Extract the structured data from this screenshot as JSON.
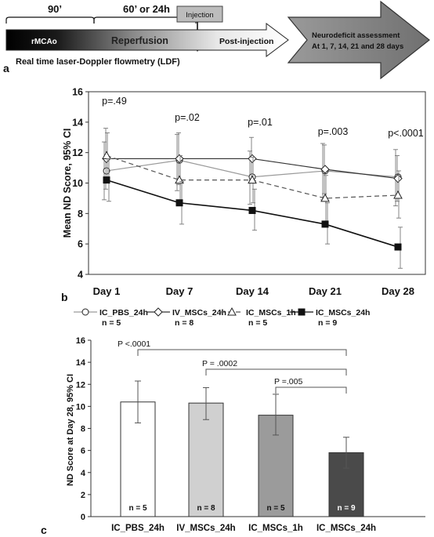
{
  "panel_a": {
    "label": "a",
    "t90": "90’",
    "t60": "60’ or 24h",
    "injection": "Injection",
    "rmcao": "rMCAo",
    "reperfusion": "Reperfusion",
    "post": "Post-injection",
    "ldf": "Real time laser-Doppler flowmetry (LDF)",
    "assess1": "Neurodeficit assessment",
    "assess2": "At 1, 7, 14, 21 and 28 days"
  },
  "chart_data": [
    {
      "panel": "b",
      "type": "line",
      "ylabel": "Mean ND Score, 95% CI",
      "ylim": [
        4,
        16
      ],
      "yticks": [
        "4",
        "6",
        "8",
        "10",
        "12",
        "14",
        "16"
      ],
      "categories": [
        "Day 1",
        "Day 7",
        "Day 14",
        "Day 21",
        "Day 28"
      ],
      "pvalues": [
        "p=.49",
        "p=.02",
        "p=.01",
        "p=.003",
        "p<.0001"
      ],
      "series": [
        {
          "name": "IC_PBS_24h",
          "n": "n = 5",
          "marker": "circle",
          "color": "#222222",
          "line": "#9a9a9a",
          "dash": "",
          "values": [
            10.8,
            11.5,
            10.4,
            10.8,
            10.4
          ],
          "lo": [
            8.9,
            9.5,
            8.6,
            8.9,
            8.5
          ],
          "hi": [
            12.7,
            13.2,
            12.1,
            12.6,
            12.2
          ]
        },
        {
          "name": "IV_MSCs_24h",
          "n": "n = 8",
          "marker": "diamond",
          "color": "#222222",
          "line": "#333333",
          "dash": "",
          "values": [
            11.6,
            11.6,
            11.6,
            10.9,
            10.3
          ],
          "lo": [
            9.6,
            9.9,
            10.2,
            9.3,
            8.8
          ],
          "hi": [
            13.6,
            13.3,
            13.0,
            12.5,
            11.8
          ]
        },
        {
          "name": "IC_MSCs_1h",
          "n": "n = 5",
          "marker": "triangle",
          "color": "#222222",
          "line": "#555555",
          "dash": "6,4",
          "values": [
            11.8,
            10.2,
            10.2,
            9.0,
            9.2
          ],
          "lo": [
            10.3,
            8.6,
            8.7,
            7.5,
            7.7
          ],
          "hi": [
            13.3,
            11.8,
            11.7,
            10.5,
            10.8
          ]
        },
        {
          "name": "IC_MSCs_24h",
          "n": "n = 9",
          "marker": "square",
          "color": "#111111",
          "line": "#111111",
          "dash": "",
          "values": [
            10.2,
            8.7,
            8.2,
            7.3,
            5.8
          ],
          "lo": [
            8.8,
            7.3,
            6.9,
            6.0,
            4.4
          ],
          "hi": [
            11.6,
            10.1,
            9.6,
            8.7,
            7.1
          ]
        }
      ]
    },
    {
      "panel": "c",
      "type": "bar",
      "ylabel": "ND Score at Day 28, 95% CI",
      "ylim": [
        0,
        16
      ],
      "yticks": [
        "0",
        "2",
        "4",
        "6",
        "8",
        "10",
        "12",
        "14",
        "16"
      ],
      "categories": [
        "IC_PBS_24h",
        "IV_MSCs_24h",
        "IC_MSCs_1h",
        "IC_MSCs_24h"
      ],
      "values": [
        10.4,
        10.3,
        9.2,
        5.8
      ],
      "lo": [
        8.5,
        8.8,
        7.4,
        4.4
      ],
      "hi": [
        12.3,
        11.7,
        11.1,
        7.2
      ],
      "n_labels": [
        "n = 5",
        "n = 8",
        "n = 5",
        "n = 9"
      ],
      "colors": [
        "#ffffff",
        "#d0d0d0",
        "#9b9b9b",
        "#4a4a4a"
      ],
      "n_colors": [
        "#111111",
        "#111111",
        "#111111",
        "#ffffff"
      ],
      "comparisons": [
        {
          "from": 0,
          "to": 3,
          "label": "P <.0001"
        },
        {
          "from": 1,
          "to": 3,
          "label": "P = .0002"
        },
        {
          "from": 2,
          "to": 3,
          "label": "P =.005"
        }
      ]
    }
  ]
}
